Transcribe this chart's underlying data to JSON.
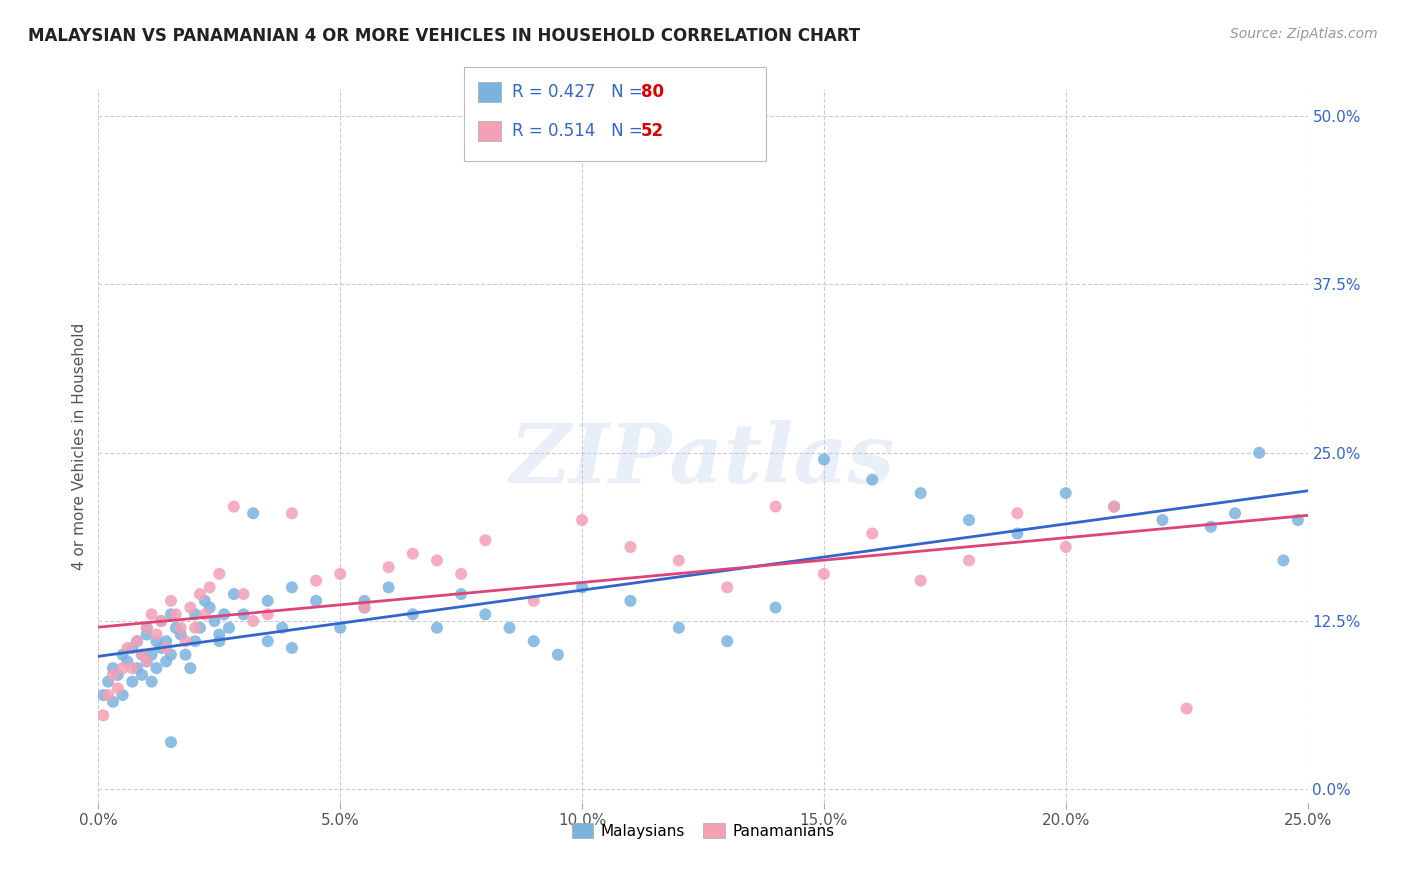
{
  "title": "MALAYSIAN VS PANAMANIAN 4 OR MORE VEHICLES IN HOUSEHOLD CORRELATION CHART",
  "source": "Source: ZipAtlas.com",
  "ylabel": "4 or more Vehicles in Household",
  "xlim": [
    0.0,
    25.0
  ],
  "ylim": [
    -1.0,
    52.0
  ],
  "xlabel_vals": [
    0.0,
    5.0,
    10.0,
    15.0,
    20.0,
    25.0
  ],
  "ylabel_vals": [
    0.0,
    12.5,
    25.0,
    37.5,
    50.0
  ],
  "malaysian_color": "#7ab3e0",
  "panamanian_color": "#f4a0b5",
  "malaysian_line_color": "#3366cc",
  "panamanian_line_color": "#dd4477",
  "R_malaysian": 0.427,
  "N_malaysian": 80,
  "R_panamanian": 0.514,
  "N_panamanian": 52,
  "legend_color": "#3366cc",
  "N_color": "#dd0000",
  "watermark": "ZIPatlas",
  "background_color": "#ffffff",
  "grid_color": "#cccccc",
  "malaysian_x": [
    0.1,
    0.2,
    0.3,
    0.3,
    0.4,
    0.5,
    0.5,
    0.6,
    0.7,
    0.7,
    0.8,
    0.8,
    0.9,
    0.9,
    1.0,
    1.0,
    1.0,
    1.1,
    1.1,
    1.2,
    1.2,
    1.3,
    1.3,
    1.4,
    1.4,
    1.5,
    1.5,
    1.6,
    1.7,
    1.8,
    1.9,
    2.0,
    2.0,
    2.1,
    2.2,
    2.3,
    2.4,
    2.5,
    2.6,
    2.7,
    2.8,
    3.0,
    3.2,
    3.5,
    3.8,
    4.0,
    4.5,
    5.0,
    5.5,
    6.0,
    6.5,
    7.0,
    7.5,
    8.0,
    8.5,
    9.0,
    9.5,
    10.0,
    11.0,
    12.0,
    13.0,
    14.0,
    15.0,
    16.0,
    17.0,
    18.0,
    19.0,
    20.0,
    21.0,
    22.0,
    23.0,
    23.5,
    24.0,
    24.5,
    24.8,
    2.5,
    3.5,
    4.0,
    5.5,
    1.5
  ],
  "malaysian_y": [
    7.0,
    8.0,
    9.0,
    6.5,
    8.5,
    10.0,
    7.0,
    9.5,
    10.5,
    8.0,
    9.0,
    11.0,
    10.0,
    8.5,
    11.5,
    9.5,
    12.0,
    10.0,
    8.0,
    11.0,
    9.0,
    12.5,
    10.5,
    11.0,
    9.5,
    13.0,
    10.0,
    12.0,
    11.5,
    10.0,
    9.0,
    11.0,
    13.0,
    12.0,
    14.0,
    13.5,
    12.5,
    11.0,
    13.0,
    12.0,
    14.5,
    13.0,
    20.5,
    14.0,
    12.0,
    15.0,
    14.0,
    12.0,
    14.0,
    15.0,
    13.0,
    12.0,
    14.5,
    13.0,
    12.0,
    11.0,
    10.0,
    15.0,
    14.0,
    12.0,
    11.0,
    13.5,
    24.5,
    23.0,
    22.0,
    20.0,
    19.0,
    22.0,
    21.0,
    20.0,
    19.5,
    20.5,
    25.0,
    17.0,
    20.0,
    11.5,
    11.0,
    10.5,
    13.5,
    3.5
  ],
  "panamanian_x": [
    0.1,
    0.2,
    0.3,
    0.4,
    0.5,
    0.6,
    0.7,
    0.8,
    0.9,
    1.0,
    1.0,
    1.1,
    1.2,
    1.3,
    1.4,
    1.5,
    1.6,
    1.7,
    1.8,
    1.9,
    2.0,
    2.1,
    2.2,
    2.3,
    2.5,
    2.8,
    3.0,
    3.2,
    3.5,
    4.0,
    4.5,
    5.0,
    5.5,
    6.0,
    6.5,
    7.0,
    7.5,
    8.0,
    9.0,
    10.0,
    11.0,
    12.0,
    13.0,
    14.0,
    15.0,
    16.0,
    17.0,
    18.0,
    19.0,
    20.0,
    21.0,
    22.5
  ],
  "panamanian_y": [
    5.5,
    7.0,
    8.5,
    7.5,
    9.0,
    10.5,
    9.0,
    11.0,
    10.0,
    12.0,
    9.5,
    13.0,
    11.5,
    12.5,
    10.5,
    14.0,
    13.0,
    12.0,
    11.0,
    13.5,
    12.0,
    14.5,
    13.0,
    15.0,
    16.0,
    21.0,
    14.5,
    12.5,
    13.0,
    20.5,
    15.5,
    16.0,
    13.5,
    16.5,
    17.5,
    17.0,
    16.0,
    18.5,
    14.0,
    20.0,
    18.0,
    17.0,
    15.0,
    21.0,
    16.0,
    19.0,
    15.5,
    17.0,
    20.5,
    18.0,
    21.0,
    6.0
  ]
}
